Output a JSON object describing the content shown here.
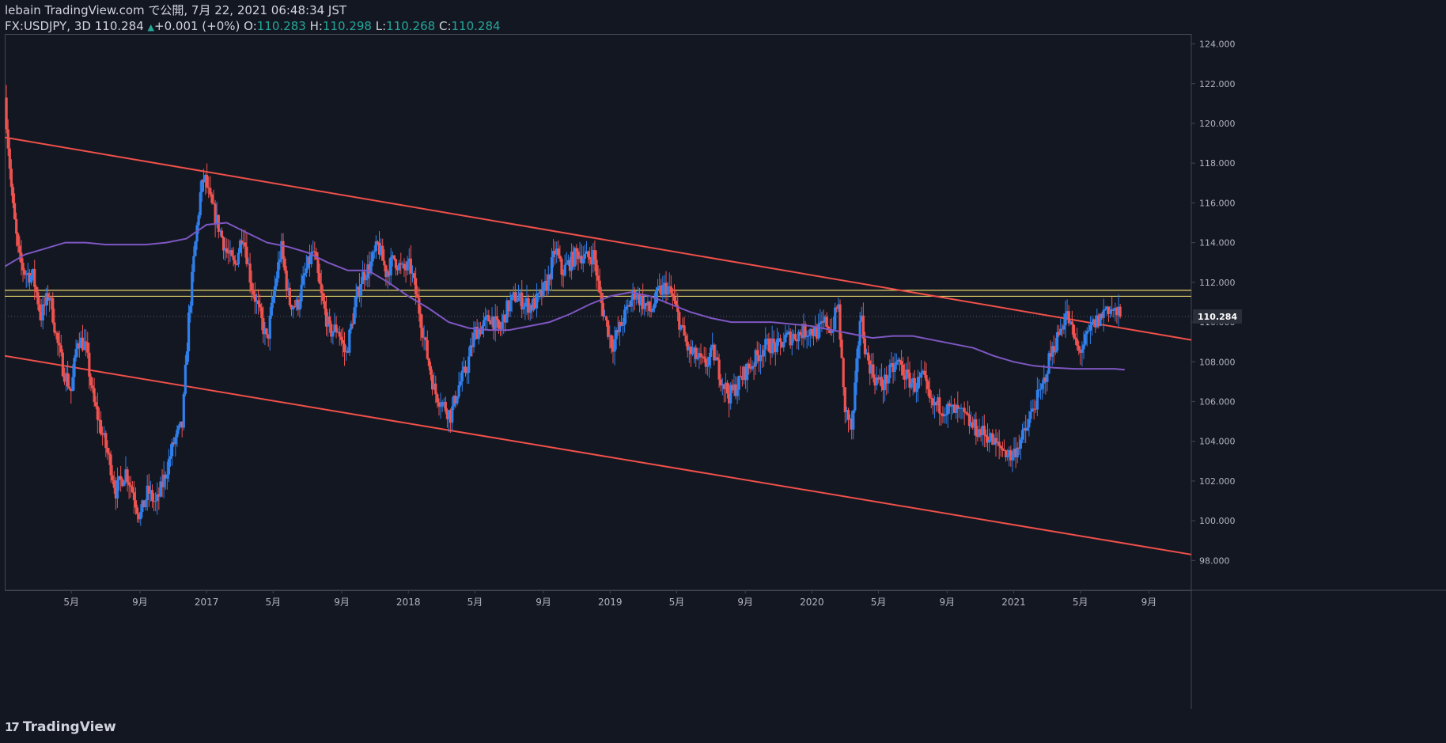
{
  "header": {
    "line1": "lebain TradingView.com で公開, 7月 22, 2021 06:48:34 JST",
    "symbol": "FX:USDJPY, 3D",
    "last": "110.284",
    "change": "+0.001 (+0%)",
    "o_label": "O:",
    "o_value": "110.283",
    "h_label": "H:",
    "h_value": "110.298",
    "l_label": "L:",
    "l_value": "110.268",
    "c_label": "C:",
    "c_value": "110.284"
  },
  "footer": {
    "brand": "TradingView"
  },
  "colors": {
    "background": "#131722",
    "up": "#2f80ed",
    "down": "#ef5350",
    "trendline": "#f0504a",
    "ma": "#7e57c2",
    "zone": "#e5d36b",
    "axis_text": "#b2b5be",
    "price_tag_bg": "#2a2e39"
  },
  "chart_data": {
    "type": "candlestick",
    "title": "FX:USDJPY, 3D",
    "xlabel": "",
    "ylabel": "",
    "ylim": [
      96.5,
      124.5
    ],
    "xlim": [
      2016.0,
      2021.88
    ],
    "yticks": [
      98,
      100,
      102,
      104,
      106,
      108,
      110,
      112,
      114,
      116,
      118,
      120,
      122,
      124
    ],
    "ytick_labels": [
      "98.000",
      "100.000",
      "102.000",
      "104.000",
      "106.000",
      "108.000",
      "110.000",
      "112.000",
      "114.000",
      "116.000",
      "118.000",
      "120.000",
      "122.000",
      "124.000"
    ],
    "xticks": [
      {
        "x": 2016.33,
        "label": "5月"
      },
      {
        "x": 2016.67,
        "label": "9月"
      },
      {
        "x": 2017.0,
        "label": "2017"
      },
      {
        "x": 2017.33,
        "label": "5月"
      },
      {
        "x": 2017.67,
        "label": "9月"
      },
      {
        "x": 2018.0,
        "label": "2018"
      },
      {
        "x": 2018.33,
        "label": "5月"
      },
      {
        "x": 2018.67,
        "label": "9月"
      },
      {
        "x": 2019.0,
        "label": "2019"
      },
      {
        "x": 2019.33,
        "label": "5月"
      },
      {
        "x": 2019.67,
        "label": "9月"
      },
      {
        "x": 2020.0,
        "label": "2020"
      },
      {
        "x": 2020.33,
        "label": "5月"
      },
      {
        "x": 2020.67,
        "label": "9月"
      },
      {
        "x": 2021.0,
        "label": "2021"
      },
      {
        "x": 2021.33,
        "label": "5月"
      },
      {
        "x": 2021.67,
        "label": "9月"
      }
    ],
    "last_price": 110.284,
    "last_price_label": "110.284",
    "close_path": [
      [
        2016.0,
        121.3
      ],
      [
        2016.02,
        118.5
      ],
      [
        2016.04,
        115.8
      ],
      [
        2016.07,
        113.2
      ],
      [
        2016.1,
        112.5
      ],
      [
        2016.14,
        112.3
      ],
      [
        2016.18,
        110.3
      ],
      [
        2016.22,
        111.5
      ],
      [
        2016.26,
        109.0
      ],
      [
        2016.29,
        107.6
      ],
      [
        2016.33,
        106.5
      ],
      [
        2016.36,
        109.2
      ],
      [
        2016.4,
        108.8
      ],
      [
        2016.44,
        106.0
      ],
      [
        2016.48,
        104.5
      ],
      [
        2016.52,
        103.0
      ],
      [
        2016.55,
        101.5
      ],
      [
        2016.6,
        102.5
      ],
      [
        2016.64,
        101.3
      ],
      [
        2016.67,
        100.2
      ],
      [
        2016.71,
        101.5
      ],
      [
        2016.75,
        100.8
      ],
      [
        2016.8,
        102.5
      ],
      [
        2016.84,
        104.0
      ],
      [
        2016.88,
        104.8
      ],
      [
        2016.91,
        110.0
      ],
      [
        2016.94,
        113.5
      ],
      [
        2016.97,
        116.5
      ],
      [
        2016.99,
        117.3
      ],
      [
        2017.02,
        116.0
      ],
      [
        2017.06,
        114.8
      ],
      [
        2017.1,
        113.5
      ],
      [
        2017.14,
        112.8
      ],
      [
        2017.18,
        114.6
      ],
      [
        2017.22,
        112.0
      ],
      [
        2017.26,
        110.5
      ],
      [
        2017.3,
        109.0
      ],
      [
        2017.33,
        111.2
      ],
      [
        2017.37,
        113.8
      ],
      [
        2017.41,
        111.0
      ],
      [
        2017.45,
        110.8
      ],
      [
        2017.49,
        112.5
      ],
      [
        2017.53,
        113.6
      ],
      [
        2017.57,
        111.2
      ],
      [
        2017.61,
        109.5
      ],
      [
        2017.65,
        109.7
      ],
      [
        2017.69,
        108.3
      ],
      [
        2017.73,
        110.5
      ],
      [
        2017.77,
        112.3
      ],
      [
        2017.81,
        112.8
      ],
      [
        2017.85,
        113.9
      ],
      [
        2017.89,
        112.5
      ],
      [
        2017.93,
        113.2
      ],
      [
        2017.97,
        112.6
      ],
      [
        2018.01,
        112.8
      ],
      [
        2018.05,
        110.8
      ],
      [
        2018.09,
        108.5
      ],
      [
        2018.13,
        106.5
      ],
      [
        2018.17,
        105.9
      ],
      [
        2018.21,
        105.3
      ],
      [
        2018.25,
        106.8
      ],
      [
        2018.29,
        107.7
      ],
      [
        2018.33,
        109.5
      ],
      [
        2018.37,
        109.8
      ],
      [
        2018.41,
        110.3
      ],
      [
        2018.45,
        109.5
      ],
      [
        2018.49,
        110.7
      ],
      [
        2018.53,
        111.3
      ],
      [
        2018.57,
        111.0
      ],
      [
        2018.61,
        110.8
      ],
      [
        2018.65,
        111.2
      ],
      [
        2018.69,
        112.0
      ],
      [
        2018.73,
        113.7
      ],
      [
        2018.76,
        112.5
      ],
      [
        2018.8,
        113.0
      ],
      [
        2018.84,
        113.5
      ],
      [
        2018.88,
        113.2
      ],
      [
        2018.92,
        113.4
      ],
      [
        2018.95,
        111.2
      ],
      [
        2018.98,
        110.0
      ],
      [
        2019.01,
        108.8
      ],
      [
        2019.04,
        109.5
      ],
      [
        2019.08,
        110.5
      ],
      [
        2019.12,
        111.5
      ],
      [
        2019.16,
        111.0
      ],
      [
        2019.2,
        110.5
      ],
      [
        2019.24,
        111.5
      ],
      [
        2019.28,
        111.8
      ],
      [
        2019.31,
        111.2
      ],
      [
        2019.35,
        109.8
      ],
      [
        2019.39,
        108.5
      ],
      [
        2019.43,
        108.2
      ],
      [
        2019.47,
        107.8
      ],
      [
        2019.51,
        108.5
      ],
      [
        2019.55,
        107.2
      ],
      [
        2019.59,
        106.3
      ],
      [
        2019.63,
        106.8
      ],
      [
        2019.67,
        107.5
      ],
      [
        2019.71,
        108.0
      ],
      [
        2019.75,
        108.6
      ],
      [
        2019.79,
        108.9
      ],
      [
        2019.83,
        108.7
      ],
      [
        2019.87,
        109.2
      ],
      [
        2019.91,
        109.3
      ],
      [
        2019.95,
        109.5
      ],
      [
        2019.99,
        109.6
      ],
      [
        2020.03,
        109.5
      ],
      [
        2020.07,
        110.0
      ],
      [
        2020.1,
        109.6
      ],
      [
        2020.13,
        111.0
      ],
      [
        2020.16,
        105.8
      ],
      [
        2020.2,
        104.5
      ],
      [
        2020.22,
        107.5
      ],
      [
        2020.24,
        110.5
      ],
      [
        2020.27,
        108.3
      ],
      [
        2020.31,
        107.2
      ],
      [
        2020.35,
        106.8
      ],
      [
        2020.39,
        107.5
      ],
      [
        2020.43,
        108.0
      ],
      [
        2020.47,
        107.2
      ],
      [
        2020.51,
        106.8
      ],
      [
        2020.55,
        107.2
      ],
      [
        2020.59,
        105.8
      ],
      [
        2020.63,
        105.8
      ],
      [
        2020.67,
        105.6
      ],
      [
        2020.71,
        105.5
      ],
      [
        2020.75,
        105.3
      ],
      [
        2020.79,
        104.8
      ],
      [
        2020.83,
        104.5
      ],
      [
        2020.87,
        104.3
      ],
      [
        2020.91,
        103.8
      ],
      [
        2020.95,
        103.6
      ],
      [
        2020.99,
        103.2
      ],
      [
        2021.02,
        103.8
      ],
      [
        2021.06,
        104.5
      ],
      [
        2021.1,
        105.8
      ],
      [
        2021.14,
        106.6
      ],
      [
        2021.18,
        108.3
      ],
      [
        2021.22,
        109.3
      ],
      [
        2021.26,
        110.5
      ],
      [
        2021.29,
        109.5
      ],
      [
        2021.32,
        108.5
      ],
      [
        2021.35,
        108.9
      ],
      [
        2021.39,
        109.8
      ],
      [
        2021.43,
        110.2
      ],
      [
        2021.46,
        110.8
      ],
      [
        2021.5,
        110.5
      ],
      [
        2021.53,
        110.284
      ]
    ],
    "ma_path": [
      [
        2016.0,
        112.8
      ],
      [
        2016.1,
        113.4
      ],
      [
        2016.2,
        113.7
      ],
      [
        2016.3,
        114.0
      ],
      [
        2016.4,
        114.0
      ],
      [
        2016.5,
        113.9
      ],
      [
        2016.6,
        113.9
      ],
      [
        2016.7,
        113.9
      ],
      [
        2016.8,
        114.0
      ],
      [
        2016.9,
        114.2
      ],
      [
        2017.0,
        114.9
      ],
      [
        2017.1,
        115.0
      ],
      [
        2017.2,
        114.5
      ],
      [
        2017.3,
        114.0
      ],
      [
        2017.4,
        113.8
      ],
      [
        2017.5,
        113.5
      ],
      [
        2017.6,
        113.0
      ],
      [
        2017.7,
        112.6
      ],
      [
        2017.8,
        112.6
      ],
      [
        2017.9,
        112.0
      ],
      [
        2018.0,
        111.3
      ],
      [
        2018.1,
        110.7
      ],
      [
        2018.2,
        110.0
      ],
      [
        2018.3,
        109.7
      ],
      [
        2018.4,
        109.6
      ],
      [
        2018.5,
        109.6
      ],
      [
        2018.6,
        109.8
      ],
      [
        2018.7,
        110.0
      ],
      [
        2018.8,
        110.4
      ],
      [
        2018.9,
        110.9
      ],
      [
        2019.0,
        111.3
      ],
      [
        2019.1,
        111.5
      ],
      [
        2019.2,
        111.3
      ],
      [
        2019.3,
        110.9
      ],
      [
        2019.4,
        110.5
      ],
      [
        2019.5,
        110.2
      ],
      [
        2019.6,
        110.0
      ],
      [
        2019.7,
        110.0
      ],
      [
        2019.8,
        110.0
      ],
      [
        2019.9,
        109.9
      ],
      [
        2020.0,
        109.8
      ],
      [
        2020.1,
        109.6
      ],
      [
        2020.2,
        109.4
      ],
      [
        2020.3,
        109.2
      ],
      [
        2020.4,
        109.3
      ],
      [
        2020.5,
        109.3
      ],
      [
        2020.6,
        109.1
      ],
      [
        2020.7,
        108.9
      ],
      [
        2020.8,
        108.7
      ],
      [
        2020.9,
        108.3
      ],
      [
        2021.0,
        108.0
      ],
      [
        2021.1,
        107.8
      ],
      [
        2021.2,
        107.7
      ],
      [
        2021.3,
        107.65
      ],
      [
        2021.4,
        107.65
      ],
      [
        2021.5,
        107.65
      ],
      [
        2021.55,
        107.6
      ]
    ],
    "upper_trendline": {
      "from": [
        2016.0,
        119.3
      ],
      "to": [
        2021.88,
        109.1
      ]
    },
    "lower_trendline": {
      "from": [
        2016.0,
        108.3
      ],
      "to": [
        2021.88,
        98.3
      ]
    },
    "horizontal_zone": [
      111.3,
      111.6
    ]
  }
}
